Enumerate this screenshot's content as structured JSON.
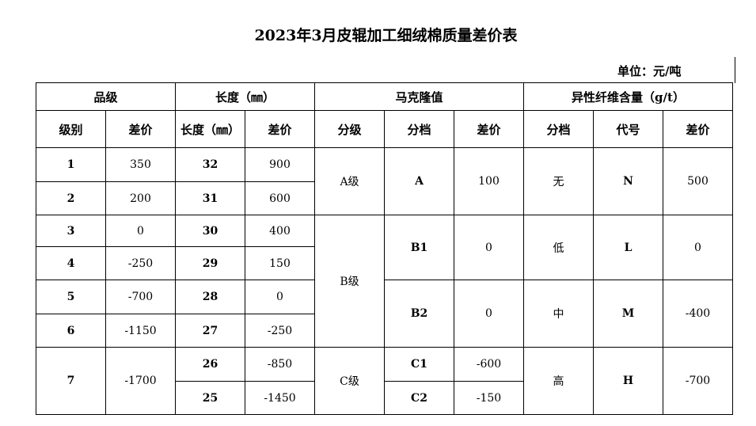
{
  "title": "2023年3月皮辊加工细绒棉质量差价表",
  "unit": "单位：元/吨",
  "header_groups": [
    "品级",
    "长度（㎜）",
    "马克隆值",
    "异性纤维含量（g/t）"
  ],
  "headers": [
    "级别",
    "差价",
    "长度（㎜）",
    "差价",
    "分级",
    "分档",
    "差价",
    "分档",
    "代号",
    "差价"
  ],
  "grade": [
    {
      "level": "1",
      "price": "350"
    },
    {
      "level": "2",
      "price": "200"
    },
    {
      "level": "3",
      "price": "0"
    },
    {
      "level": "4",
      "price": "-250"
    },
    {
      "level": "5",
      "price": "-700"
    },
    {
      "level": "6",
      "price": "-1150"
    },
    {
      "level": "7",
      "price": "-1700"
    }
  ],
  "length": [
    {
      "mm": "32",
      "price": "900"
    },
    {
      "mm": "31",
      "price": "600"
    },
    {
      "mm": "30",
      "price": "400"
    },
    {
      "mm": "29",
      "price": "150"
    },
    {
      "mm": "28",
      "price": "0"
    },
    {
      "mm": "27",
      "price": "-250"
    },
    {
      "mm": "26",
      "price": "-850"
    },
    {
      "mm": "25",
      "price": "-1450"
    }
  ],
  "micronaire_classes": [
    "A级",
    "B级",
    "C级"
  ],
  "micronaire": [
    {
      "range": "A",
      "price": "100"
    },
    {
      "range": "B1",
      "price": "0"
    },
    {
      "range": "B2",
      "price": "0"
    },
    {
      "range": "C1",
      "price": "-600"
    },
    {
      "range": "C2",
      "price": "-150"
    }
  ],
  "foreign_fiber": [
    {
      "range": "无",
      "code": "N",
      "price": "500"
    },
    {
      "range": "低",
      "code": "L",
      "price": "0"
    },
    {
      "range": "中",
      "code": "M",
      "price": "-400"
    },
    {
      "range": "高",
      "code": "H",
      "price": "-700"
    }
  ]
}
